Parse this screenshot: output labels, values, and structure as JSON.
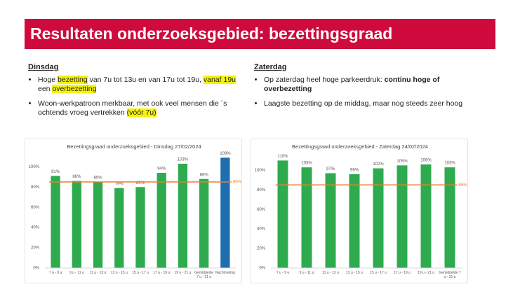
{
  "header": {
    "title": "Resultaten onderzoeksgebied: bezettingsgraad"
  },
  "columns": [
    {
      "heading": "Dinsdag",
      "bullets": [
        [
          "Hoge ",
          "bezetting",
          " van 7u tot 13u en van 17u tot 19u, ",
          "vanaf 19u",
          " een ",
          "overbezetting"
        ],
        [
          "Woon-werkpatroon merkbaar, met ook veel mensen die ´s ochtends vroeg vertrekken ",
          "(vóór 7u)"
        ]
      ]
    },
    {
      "heading": "Zaterdag",
      "bullets": [
        [
          "Op zaterdag heel hoge parkeerdruk: ",
          "continu hoge of overbezetting"
        ],
        [
          "Laagste bezetting op de middag, maar nog steeds zeer hoog"
        ]
      ]
    }
  ],
  "chart_data": [
    {
      "type": "bar",
      "title": "Bezettingsgraad onderzoeksgebied - Dinsdag 27/02/2024",
      "categories": [
        "7 u - 9 u",
        "9 u - 11 u",
        "11 u - 13 u",
        "13 u - 15 u",
        "15 u - 17 u",
        "17 u - 19 u",
        "19 u - 21 u",
        "Gemiddelde 7 u - 21 u",
        "Nachtmeting"
      ],
      "values": [
        91,
        86,
        85,
        79,
        80,
        94,
        103,
        88,
        109
      ],
      "value_labels": [
        "91%",
        "86%",
        "85%",
        "79%",
        "80%",
        "94%",
        "103%",
        "88%",
        "109%"
      ],
      "colors": [
        "#2eab4e",
        "#2eab4e",
        "#2eab4e",
        "#2eab4e",
        "#2eab4e",
        "#2eab4e",
        "#2eab4e",
        "#2eab4e",
        "#1f6eb0"
      ],
      "ylim": [
        0,
        112
      ],
      "yticks": [
        {
          "value": 0,
          "label": "0%"
        },
        {
          "value": 20,
          "label": "20%"
        },
        {
          "value": 40,
          "label": "40%"
        },
        {
          "value": 60,
          "label": "60%"
        },
        {
          "value": 80,
          "label": "80%"
        },
        {
          "value": 100,
          "label": "100%"
        }
      ],
      "reference_line": {
        "value": 85,
        "label": "85%",
        "color": "#ed7d31"
      }
    },
    {
      "type": "bar",
      "title": "Bezettingsgraad onderzoeksgebied - Zaterdag 24/02/2024",
      "categories": [
        "7 u - 9 u",
        "9 u - 11 u",
        "11 u - 13 u",
        "13 u - 15 u",
        "15 u - 17 u",
        "17 u - 19 u",
        "19 u - 21 u",
        "Gemiddelde 7 u - 21 u"
      ],
      "values": [
        110,
        103,
        97,
        96,
        102,
        105,
        106,
        103
      ],
      "value_labels": [
        "110%",
        "103%",
        "97%",
        "96%",
        "102%",
        "105%",
        "106%",
        "103%"
      ],
      "colors": [
        "#2eab4e",
        "#2eab4e",
        "#2eab4e",
        "#2eab4e",
        "#2eab4e",
        "#2eab4e",
        "#2eab4e",
        "#2eab4e"
      ],
      "ylim": [
        0,
        116
      ],
      "yticks": [
        {
          "value": 0,
          "label": "0%"
        },
        {
          "value": 20,
          "label": "20%"
        },
        {
          "value": 40,
          "label": "40%"
        },
        {
          "value": 60,
          "label": "60%"
        },
        {
          "value": 80,
          "label": "80%"
        },
        {
          "value": 100,
          "label": "100%"
        }
      ],
      "reference_line": {
        "value": 85,
        "label": "85%",
        "color": "#ed7d31"
      }
    }
  ]
}
